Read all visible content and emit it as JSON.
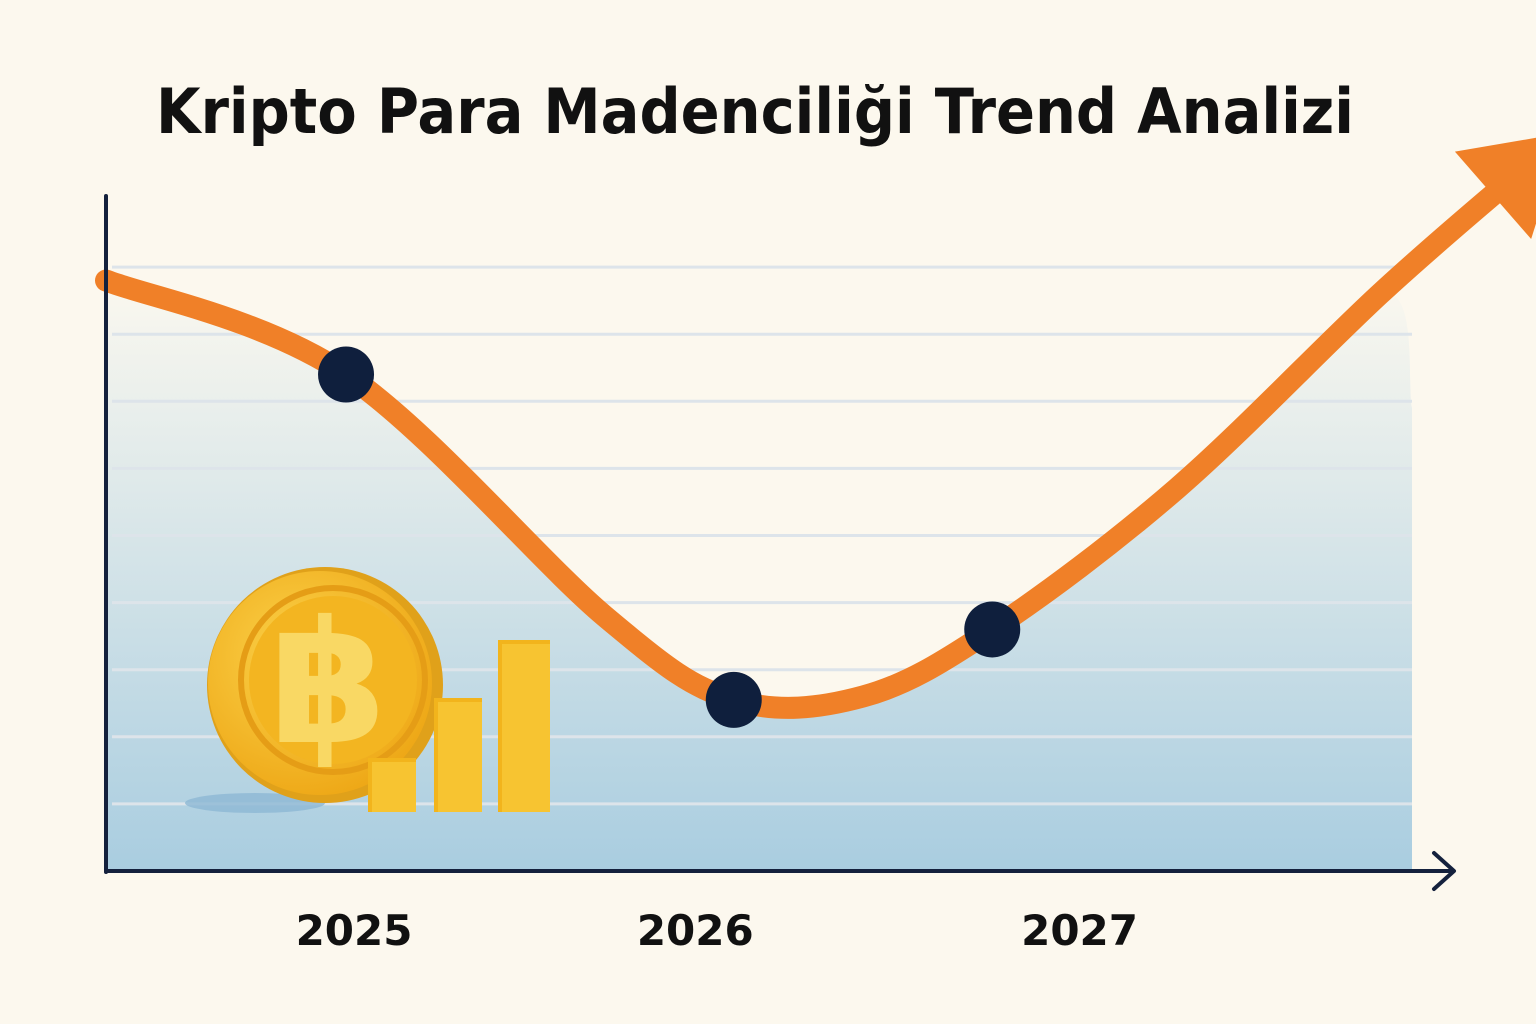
{
  "chart_data": {
    "type": "line",
    "title": "Kripto Para Madenciliği Trend Analizi",
    "xlabel": "",
    "ylabel": "",
    "tick_labels": [
      "2025",
      "2026",
      "2027"
    ],
    "x_ticks": [
      2025,
      2026,
      2027
    ],
    "xlim": [
      2024.35,
      2028.45
    ],
    "ylim": [
      0,
      10
    ],
    "grid": true,
    "series": [
      {
        "values": [
          {
            "x": 2024.35,
            "y": 8.8
          },
          {
            "x": 2025.0,
            "y": 7.4
          },
          {
            "x": 2025.7,
            "y": 3.8
          },
          {
            "x": 2026.05,
            "y": 2.55
          },
          {
            "x": 2026.4,
            "y": 2.6
          },
          {
            "x": 2026.75,
            "y": 3.6
          },
          {
            "x": 2027.25,
            "y": 5.7
          },
          {
            "x": 2027.8,
            "y": 8.6
          },
          {
            "x": 2028.3,
            "y": 11.0
          }
        ],
        "markers": [
          {
            "x": 2025.0,
            "y": 7.4
          },
          {
            "x": 2026.05,
            "y": 2.55
          },
          {
            "x": 2026.75,
            "y": 3.6
          }
        ]
      }
    ],
    "arrowhead": true,
    "area_fill": true
  },
  "colors": {
    "background": "#fcf8ee",
    "line": "#f08028",
    "marker": "#0f1f3d",
    "axis": "#14213d",
    "grid": "#dde4ea",
    "area_top": "#fbf8ef",
    "area_bottom": "#a9cde0",
    "coin": "#f4b81c",
    "coin_dark": "#d9971a",
    "coin_symbol": "#f9d864",
    "bars": "#f6be24"
  },
  "icons": {
    "decoration": "bitcoin-coin-icon",
    "bars": "gold-bar-chart-icon"
  }
}
